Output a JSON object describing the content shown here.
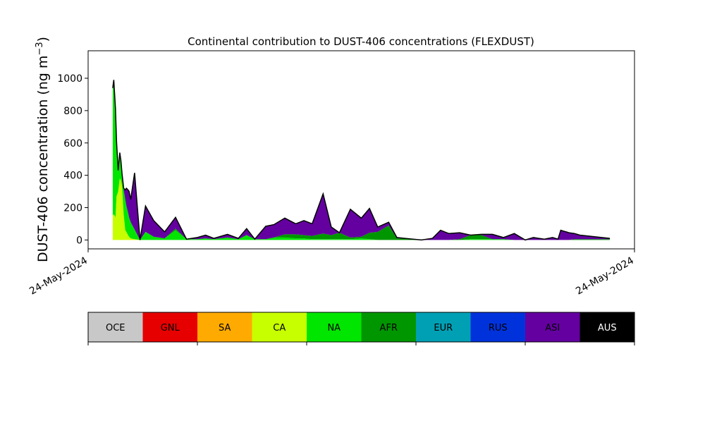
{
  "chart_data": {
    "type": "area",
    "stacked": true,
    "title": "Continental contribution to DUST-406 concentrations (FLEXDUST)",
    "ylabel_main": "DUST-406 concentration (ng m",
    "ylabel_sup": "−3",
    "ylabel_close": ")",
    "x_tick_labels": [
      "24-May-2024",
      "24-May-2024"
    ],
    "y_ticks": [
      0,
      200,
      400,
      600,
      800,
      1000
    ],
    "ylim": [
      -55,
      1170
    ],
    "grid": false,
    "total_line_color": "#000000",
    "x": [
      0.045,
      0.047,
      0.05,
      0.052,
      0.055,
      0.058,
      0.06,
      0.062,
      0.065,
      0.068,
      0.07,
      0.073,
      0.075,
      0.078,
      0.085,
      0.095,
      0.105,
      0.12,
      0.14,
      0.16,
      0.18,
      0.2,
      0.215,
      0.23,
      0.255,
      0.275,
      0.29,
      0.305,
      0.325,
      0.34,
      0.36,
      0.38,
      0.395,
      0.41,
      0.43,
      0.445,
      0.46,
      0.48,
      0.5,
      0.515,
      0.53,
      0.55,
      0.565,
      0.58,
      0.595,
      0.61,
      0.63,
      0.645,
      0.66,
      0.68,
      0.7,
      0.72,
      0.74,
      0.76,
      0.78,
      0.8,
      0.815,
      0.835,
      0.85,
      0.86,
      0.865,
      0.87,
      0.875,
      0.88,
      0.89,
      0.9,
      0.955
    ],
    "series": [
      {
        "name": "CA",
        "color": "#c8ff00",
        "values": [
          150,
          160,
          140,
          270,
          300,
          380,
          370,
          330,
          160,
          60,
          50,
          30,
          20,
          10,
          5,
          0,
          0,
          0,
          0,
          0,
          0,
          0,
          0,
          0,
          0,
          0,
          0,
          0,
          0,
          0,
          0,
          0,
          0,
          0,
          0,
          0,
          0,
          0,
          0,
          0,
          0,
          0,
          0,
          0,
          0,
          0,
          0,
          0,
          0,
          0,
          0,
          0,
          0,
          0,
          0,
          0,
          0,
          0,
          0,
          0,
          0,
          0,
          0,
          0,
          0,
          0,
          0
        ]
      },
      {
        "name": "NA",
        "color": "#00e600",
        "values": [
          780,
          820,
          660,
          330,
          120,
          150,
          110,
          70,
          150,
          190,
          160,
          140,
          120,
          100,
          60,
          0,
          50,
          20,
          10,
          60,
          5,
          5,
          10,
          5,
          15,
          5,
          30,
          5,
          5,
          15,
          15,
          10,
          10,
          5,
          5,
          5,
          5,
          5,
          10,
          5,
          0,
          0,
          0,
          0,
          0,
          0,
          0,
          0,
          0,
          0,
          5,
          5,
          5,
          5,
          0,
          0,
          0,
          0,
          0,
          0,
          0,
          0,
          0,
          0,
          0,
          0,
          0
        ]
      },
      {
        "name": "AFR",
        "color": "#009600",
        "values": [
          0,
          0,
          0,
          0,
          0,
          0,
          0,
          0,
          0,
          0,
          0,
          0,
          0,
          0,
          0,
          0,
          0,
          0,
          0,
          10,
          0,
          0,
          0,
          0,
          0,
          0,
          0,
          0,
          0,
          0,
          20,
          25,
          20,
          20,
          35,
          25,
          40,
          10,
          10,
          40,
          50,
          90,
          10,
          10,
          5,
          0,
          0,
          0,
          0,
          5,
          25,
          25,
          0,
          0,
          0,
          0,
          0,
          0,
          0,
          0,
          0,
          0,
          0,
          0,
          5,
          5,
          5
        ]
      },
      {
        "name": "ASI",
        "color": "#6400a0",
        "values": [
          10,
          10,
          10,
          10,
          10,
          10,
          10,
          10,
          10,
          60,
          110,
          140,
          160,
          140,
          350,
          0,
          160,
          100,
          40,
          70,
          0,
          10,
          20,
          5,
          20,
          5,
          40,
          0,
          80,
          80,
          100,
          65,
          90,
          75,
          245,
          50,
          0,
          175,
          115,
          150,
          30,
          20,
          5,
          0,
          0,
          0,
          10,
          60,
          40,
          40,
          0,
          5,
          30,
          10,
          40,
          0,
          15,
          5,
          15,
          5,
          60,
          55,
          50,
          45,
          35,
          25,
          5
        ]
      }
    ],
    "legend_entries": [
      {
        "name": "OCE",
        "color": "#c8c8c8"
      },
      {
        "name": "GNL",
        "color": "#e60000"
      },
      {
        "name": "SA",
        "color": "#ffaa00"
      },
      {
        "name": "CA",
        "color": "#c8ff00"
      },
      {
        "name": "NA",
        "color": "#00e600"
      },
      {
        "name": "AFR",
        "color": "#009600"
      },
      {
        "name": "EUR",
        "color": "#00a0b4"
      },
      {
        "name": "RUS",
        "color": "#0032dc"
      },
      {
        "name": "ASI",
        "color": "#6400a0"
      },
      {
        "name": "AUS",
        "color": "#000000"
      }
    ]
  }
}
